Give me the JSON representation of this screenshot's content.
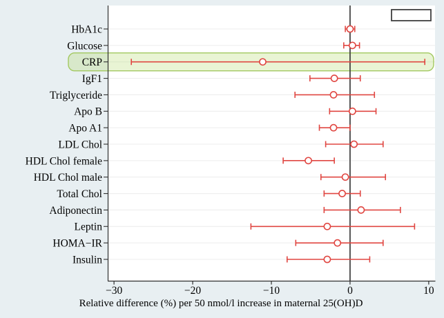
{
  "figure": {
    "title": "",
    "colors": {
      "page_bg": "#e8eff2",
      "plot_bg": "#ffffff",
      "grid": "#ececec",
      "axis": "#2f2f2f",
      "zero_line": "#3a3a3a",
      "series": "#e04641",
      "marker_fill": "#ffffff",
      "highlight_fill": "rgba(176,215,100,0.28)",
      "highlight_stroke": "#a2c860",
      "legend_border": "#3f3f3f",
      "legend_fill": "#ffffff",
      "text": "#000000"
    },
    "legend_box": {
      "visible": true,
      "text": ""
    }
  },
  "chart_data": {
    "type": "scatter",
    "subtype": "horizontal-forest-plot-with-error-bars",
    "title": "",
    "xlabel": "Relative difference (%) per 50 nmol/l increase in maternal 25(OH)D",
    "ylabel": "",
    "xlim": [
      -30.8,
      10.8
    ],
    "xticks": [
      -30,
      -20,
      -10,
      0,
      10
    ],
    "xtick_labels": [
      "−30",
      "−20",
      "−10",
      "0",
      "10"
    ],
    "refline_x": 0,
    "grid": "horizontal",
    "legend_position": "top-right",
    "highlighted_category": "CRP",
    "categories": [
      "HbA1c",
      "Glucose",
      "CRP",
      "IgF1",
      "Triglyceride",
      "Apo B",
      "Apo A1",
      "LDL Chol",
      "HDL Chol female",
      "HDL Chol male",
      "Total Chol",
      "Adiponectin",
      "Leptin",
      "HOMA−IR",
      "Insulin"
    ],
    "points": [
      {
        "label": "HbA1c",
        "value": 0.0,
        "ci_low": -0.6,
        "ci_high": 0.6
      },
      {
        "label": "Glucose",
        "value": 0.3,
        "ci_low": -0.8,
        "ci_high": 1.2
      },
      {
        "label": "CRP",
        "value": -11.1,
        "ci_low": -27.8,
        "ci_high": 9.5
      },
      {
        "label": "IgF1",
        "value": -2.0,
        "ci_low": -5.1,
        "ci_high": 1.3
      },
      {
        "label": "Triglyceride",
        "value": -2.1,
        "ci_low": -7.0,
        "ci_high": 3.1
      },
      {
        "label": "Apo B",
        "value": 0.3,
        "ci_low": -2.6,
        "ci_high": 3.3
      },
      {
        "label": "Apo A1",
        "value": -2.1,
        "ci_low": -3.9,
        "ci_high": 0.0
      },
      {
        "label": "LDL Chol",
        "value": 0.5,
        "ci_low": -3.1,
        "ci_high": 4.2
      },
      {
        "label": "HDL Chol female",
        "value": -5.3,
        "ci_low": -8.5,
        "ci_high": -2.0
      },
      {
        "label": "HDL Chol male",
        "value": -0.6,
        "ci_low": -3.7,
        "ci_high": 4.5
      },
      {
        "label": "Total Chol",
        "value": -1.0,
        "ci_low": -3.3,
        "ci_high": 1.3
      },
      {
        "label": "Adiponectin",
        "value": 1.4,
        "ci_low": -3.3,
        "ci_high": 6.4
      },
      {
        "label": "Leptin",
        "value": -2.9,
        "ci_low": -12.6,
        "ci_high": 8.2
      },
      {
        "label": "HOMA−IR",
        "value": -1.6,
        "ci_low": -6.9,
        "ci_high": 4.2
      },
      {
        "label": "Insulin",
        "value": -2.9,
        "ci_low": -8.0,
        "ci_high": 2.5
      }
    ]
  }
}
